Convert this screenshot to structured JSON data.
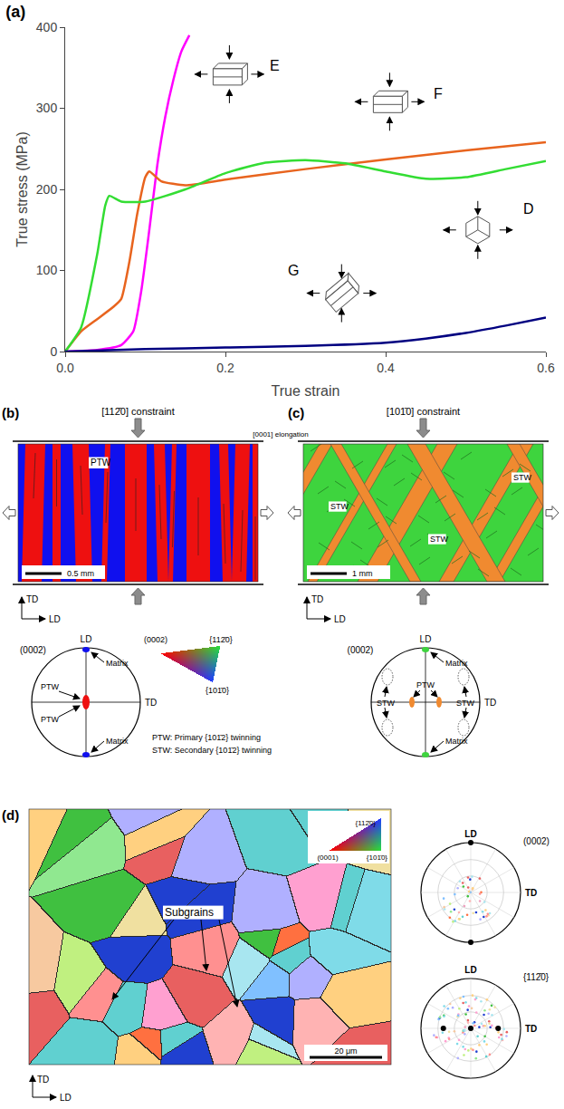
{
  "chart_data": {
    "type": "line",
    "title": "(a)",
    "xlabel": "True strain",
    "ylabel": "True stress (MPa)",
    "xlim": [
      0,
      0.6
    ],
    "xticks": [
      {
        "value": 0,
        "label": "0.0"
      },
      {
        "value": 0.2,
        "label": "0.2"
      },
      {
        "value": 0.4,
        "label": "0.4"
      },
      {
        "value": 0.6,
        "label": "0.6"
      }
    ],
    "ylim": [
      0,
      400
    ],
    "yticks": [
      0,
      100,
      200,
      300,
      400
    ],
    "grid": false,
    "series": [
      {
        "name": "E",
        "color": "#ff00ff",
        "x": [
          0,
          0.04,
          0.07,
          0.085,
          0.095,
          0.105,
          0.115,
          0.125,
          0.135,
          0.145,
          0.155
        ],
        "values": [
          0,
          2,
          8,
          25,
          75,
          150,
          230,
          290,
          335,
          370,
          390
        ]
      },
      {
        "name": "F",
        "color": "#e8641e",
        "x": [
          0,
          0.02,
          0.04,
          0.06,
          0.07,
          0.08,
          0.09,
          0.1,
          0.105,
          0.12,
          0.15,
          0.2,
          0.3,
          0.4,
          0.5,
          0.6
        ],
        "values": [
          0,
          25,
          40,
          55,
          65,
          110,
          170,
          215,
          222,
          210,
          205,
          212,
          225,
          237,
          248,
          258
        ]
      },
      {
        "name": "D",
        "color": "#33dd33",
        "x": [
          0,
          0.02,
          0.04,
          0.05,
          0.055,
          0.07,
          0.1,
          0.15,
          0.2,
          0.25,
          0.3,
          0.35,
          0.4,
          0.45,
          0.5,
          0.55,
          0.6
        ],
        "values": [
          0,
          30,
          120,
          180,
          192,
          185,
          185,
          200,
          220,
          233,
          236,
          232,
          222,
          213,
          215,
          225,
          235
        ]
      },
      {
        "name": "G",
        "color": "#000080",
        "x": [
          0,
          0.1,
          0.2,
          0.3,
          0.4,
          0.45,
          0.5,
          0.55,
          0.6
        ],
        "values": [
          0,
          3,
          5,
          7,
          11,
          16,
          23,
          32,
          42
        ]
      }
    ]
  },
  "panels": {
    "b": {
      "label": "(b)",
      "constraint": "[112̄0] constraint",
      "map_label": "PTW",
      "scale_bar": "0.5 mm",
      "axes": [
        "TD",
        "LD"
      ],
      "colors": [
        "#1010ee",
        "#ee1010"
      ],
      "pole_figure": {
        "title": "(0002)",
        "axes": [
          "LD",
          "TD"
        ],
        "labels": [
          "Matrix",
          "PTW",
          "PTW",
          "Matrix"
        ]
      },
      "key": {
        "corners": [
          "(0002)",
          "{112̄0}",
          "{101̄0}"
        ]
      },
      "notes": [
        "PTW: Primary {101̄2} twinning",
        "STW: Secondary {101̄2} twinning"
      ]
    },
    "elongation": "[0001] elongation",
    "c": {
      "label": "(c)",
      "constraint": "[101̄0] constraint",
      "map_labels": [
        "STW",
        "STW",
        "STW"
      ],
      "scale_bar": "1 mm",
      "axes": [
        "TD",
        "LD"
      ],
      "colors": [
        "#3ed43e",
        "#f08a30"
      ],
      "pole_figure": {
        "title": "(0002)",
        "axes": [
          "LD",
          "TD"
        ],
        "labels": [
          "Matrix",
          "PTW",
          "STW",
          "STW",
          "Matrix"
        ]
      }
    },
    "d": {
      "label": "(d)",
      "callout": "Subgrains",
      "scale_bar": "20 μm",
      "axes": [
        "TD",
        "LD"
      ],
      "key": {
        "corners": [
          "(0001)",
          "{112̄0}",
          "{101̄0}"
        ]
      },
      "pole_figures": [
        {
          "title": "(0002)",
          "axes": [
            "LD",
            "TD"
          ]
        },
        {
          "title": "{112̄0}",
          "axes": [
            "LD",
            "TD"
          ]
        }
      ]
    }
  }
}
